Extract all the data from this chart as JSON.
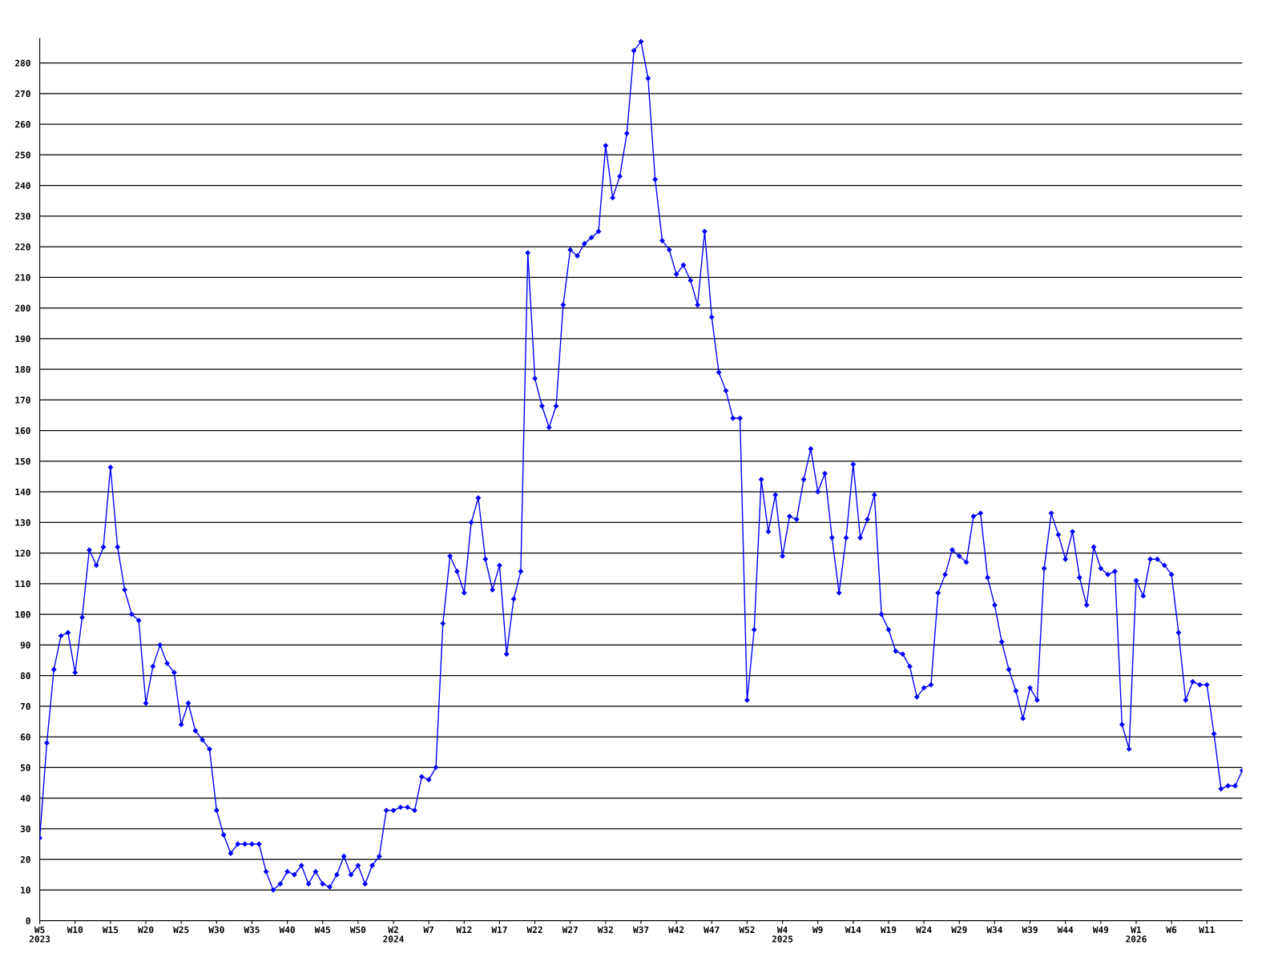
{
  "chart_data": {
    "type": "line",
    "categories": [
      "W5\n2023",
      null,
      null,
      null,
      null,
      "W10",
      null,
      null,
      null,
      null,
      "W15",
      null,
      null,
      null,
      null,
      "W20",
      null,
      null,
      null,
      null,
      "W25",
      null,
      null,
      null,
      null,
      "W30",
      null,
      null,
      null,
      null,
      "W35",
      null,
      null,
      null,
      null,
      "W40",
      null,
      null,
      null,
      null,
      "W45",
      null,
      null,
      null,
      null,
      "W50",
      null,
      null,
      null,
      null,
      "W2\n2024",
      null,
      null,
      null,
      null,
      "W7",
      null,
      null,
      null,
      null,
      "W12",
      null,
      null,
      null,
      null,
      "W17",
      null,
      null,
      null,
      null,
      "W22",
      null,
      null,
      null,
      null,
      "W27",
      null,
      null,
      null,
      null,
      "W32",
      null,
      null,
      null,
      null,
      "W37",
      null,
      null,
      null,
      null,
      "W42",
      null,
      null,
      null,
      null,
      "W47",
      null,
      null,
      null,
      null,
      "W52",
      null,
      null,
      null,
      null,
      "W4\n2025",
      null,
      null,
      null,
      null,
      "W9",
      null,
      null,
      null,
      null,
      "W14",
      null,
      null,
      null,
      null,
      "W19",
      null,
      null,
      null,
      null,
      "W24",
      null,
      null,
      null,
      null,
      "W29",
      null,
      null,
      null,
      null,
      "W34",
      null,
      null,
      null,
      null,
      "W39",
      null,
      null,
      null,
      null,
      "W44",
      null,
      null,
      null,
      null,
      "W49",
      null,
      null,
      null,
      null,
      "W1\n2026",
      null,
      null,
      null,
      null,
      "W6",
      null,
      null,
      null,
      null,
      "W11",
      null,
      null,
      null,
      null,
      null
    ],
    "series": [
      {
        "color": "#0000ff",
        "values": [
          27,
          58,
          82,
          93,
          94,
          81,
          99,
          121,
          116,
          122,
          148,
          122,
          108,
          100,
          98,
          71,
          83,
          90,
          84,
          81,
          64,
          71,
          62,
          59,
          56,
          36,
          28,
          22,
          25,
          25,
          25,
          25,
          16,
          10,
          12,
          16,
          15,
          18,
          12,
          16,
          12,
          11,
          15,
          21,
          15,
          18,
          12,
          18,
          21,
          36,
          36,
          37,
          37,
          36,
          47,
          46,
          50,
          97,
          119,
          114,
          107,
          130,
          138,
          118,
          108,
          116,
          87,
          105,
          114,
          218,
          177,
          168,
          161,
          168,
          201,
          219,
          217,
          221,
          223,
          225,
          253,
          236,
          243,
          257,
          284,
          287,
          275,
          242,
          222,
          219,
          211,
          214,
          209,
          201,
          225,
          197,
          179,
          173,
          164,
          164,
          72,
          95,
          144,
          127,
          139,
          119,
          132,
          131,
          144,
          154,
          140,
          146,
          125,
          107,
          125,
          149,
          125,
          131,
          139,
          100,
          95,
          88,
          87,
          83,
          73,
          76,
          77,
          107,
          113,
          121,
          119,
          117,
          132,
          133,
          112,
          103,
          91,
          82,
          75,
          66,
          76,
          72,
          115,
          133,
          126,
          118,
          127,
          112,
          103,
          122,
          115,
          113,
          114,
          64,
          56,
          111,
          106,
          118,
          118,
          116,
          113,
          94,
          72,
          78,
          77,
          77,
          61,
          43,
          44,
          44,
          49
        ]
      }
    ],
    "ylim": [
      0,
      288
    ],
    "yticks": [
      0,
      10,
      20,
      30,
      40,
      50,
      60,
      70,
      80,
      90,
      100,
      110,
      120,
      130,
      140,
      150,
      160,
      170,
      180,
      190,
      200,
      210,
      220,
      230,
      240,
      250,
      260,
      270,
      280
    ],
    "grid": "y",
    "marker": "diamond",
    "line_style": "solid",
    "legend": false
  }
}
